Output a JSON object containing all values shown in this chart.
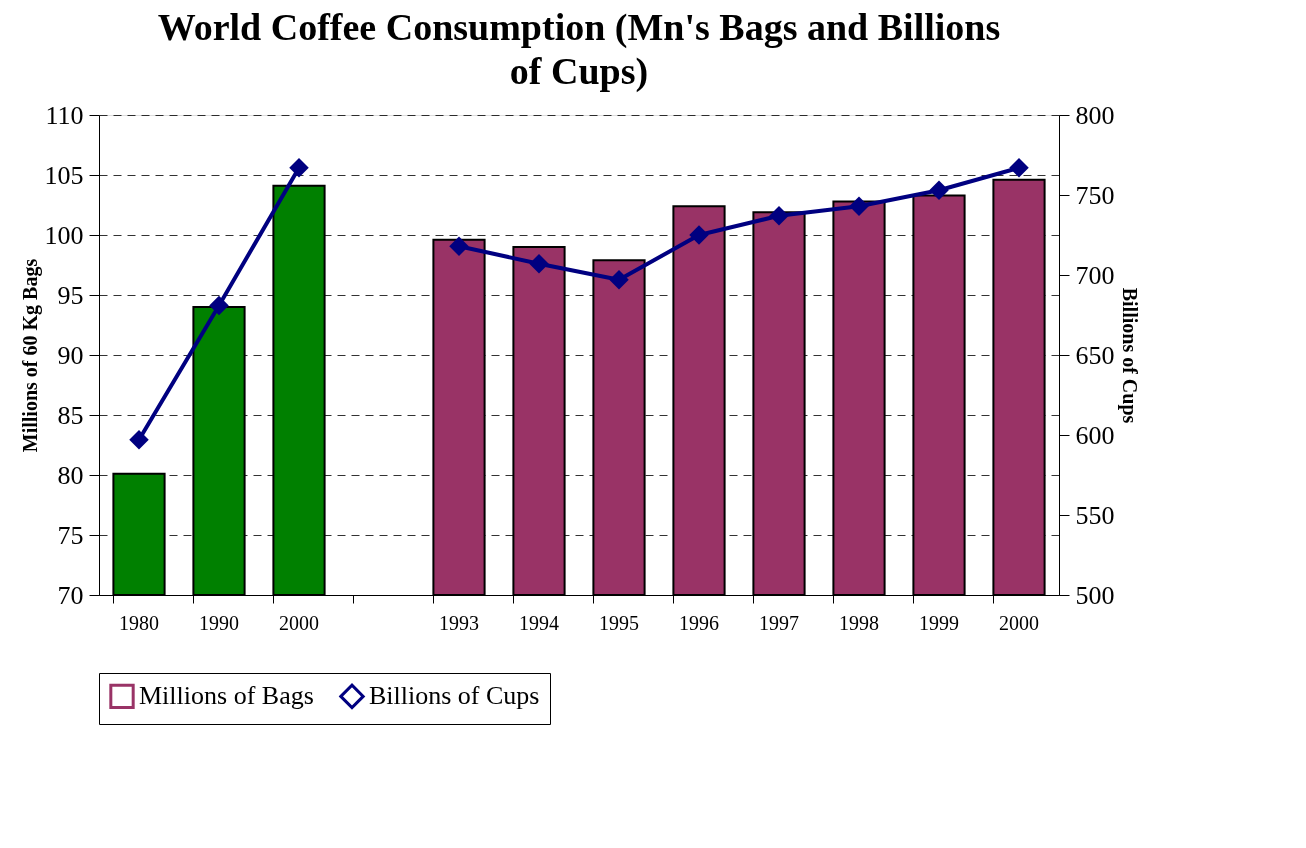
{
  "chart_data": {
    "type": "bar",
    "title": "World Coffee Consumption (Mn's Bags and Billions of Cups)",
    "categories": [
      "1980",
      "1990",
      "2000",
      null,
      "1993",
      "1994",
      "1995",
      "1996",
      "1997",
      "1998",
      "1999",
      "2000"
    ],
    "series": [
      {
        "name": "Millions of Bags",
        "color": "#993366",
        "colors": [
          "#008000",
          "#008000",
          "#008000",
          null,
          "#993366",
          "#993366",
          "#993366",
          "#993366",
          "#993366",
          "#993366",
          "#993366",
          "#993366"
        ],
        "values": [
          80.1,
          94.0,
          104.1,
          null,
          99.6,
          99.0,
          97.9,
          102.4,
          101.9,
          102.8,
          103.3,
          104.6
        ]
      },
      {
        "name": "Billions of Cups",
        "type": "line",
        "axis": "y2",
        "color": "#000080",
        "marker": "diamond",
        "values": [
          597,
          681,
          767,
          null,
          718,
          707,
          697,
          725,
          737,
          743,
          753,
          767
        ]
      }
    ],
    "ylabel": "Millions of 60 Kg Bags",
    "y2label": "Billions of Cups",
    "ylim": [
      70,
      110
    ],
    "yticks": [
      70,
      75,
      80,
      85,
      90,
      95,
      100,
      105,
      110
    ],
    "y2lim": [
      500,
      800
    ],
    "y2ticks": [
      500,
      550,
      600,
      650,
      700,
      750,
      800
    ],
    "grid": "y",
    "legend": "bottom"
  }
}
